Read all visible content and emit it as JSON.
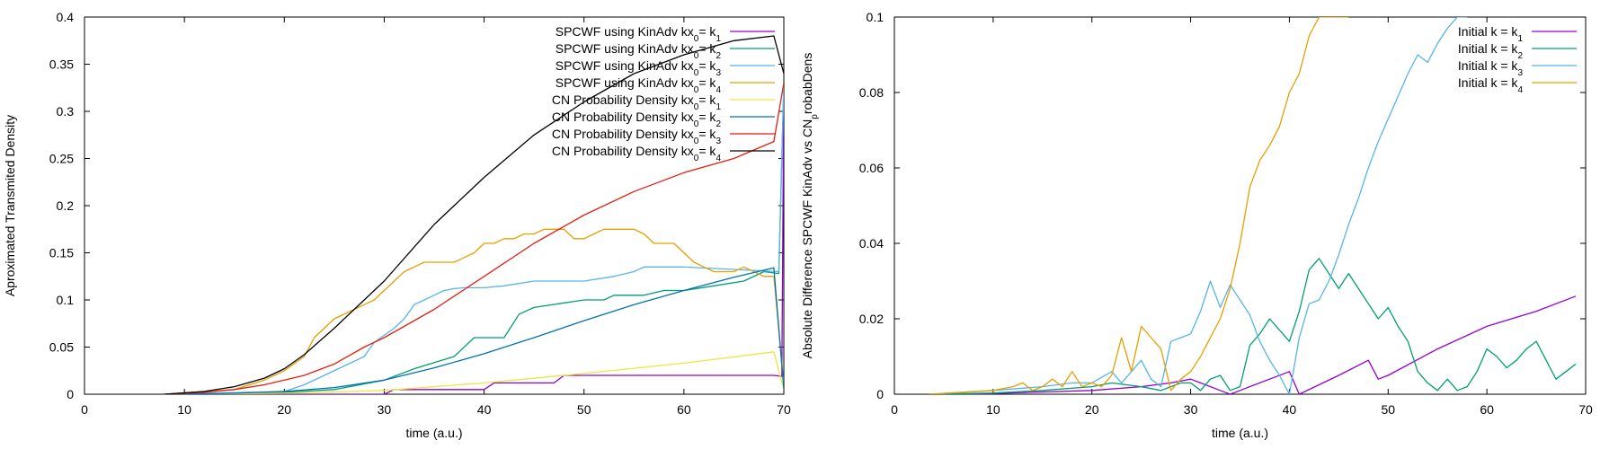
{
  "chart_data": [
    {
      "type": "line",
      "xlabel": "time (a.u.)",
      "ylabel": "Aproximated Transmited Density",
      "xlim": [
        0,
        70
      ],
      "ylim": [
        0,
        0.4
      ],
      "xticks": [
        "0",
        "10",
        "20",
        "30",
        "40",
        "50",
        "60",
        "70"
      ],
      "yticks": [
        "0",
        "0.05",
        "0.1",
        "0.15",
        "0.2",
        "0.25",
        "0.3",
        "0.35",
        "0.4"
      ],
      "grid": false,
      "legend_position": "top-right",
      "series": [
        {
          "name": "SPCWF using KinAdv kx",
          "sub": "0",
          "eq": "= k",
          "k": "1",
          "color": "#9400d3",
          "x": [
            8,
            20,
            30,
            31,
            40,
            41,
            47,
            48,
            69,
            69.8,
            70
          ],
          "y": [
            0,
            0,
            0,
            0.005,
            0.005,
            0.012,
            0.012,
            0.02,
            0.02,
            0.019,
            0.33
          ]
        },
        {
          "name": "SPCWF using KinAdv kx",
          "sub": "0",
          "eq": "= k",
          "k": "2",
          "color": "#009e73",
          "x": [
            8,
            20,
            25,
            30,
            33,
            37,
            39,
            42,
            43.5,
            45,
            50,
            52,
            53,
            56,
            58,
            60,
            63,
            66,
            68,
            69.5,
            70
          ],
          "y": [
            0,
            0.002,
            0.005,
            0.015,
            0.027,
            0.04,
            0.06,
            0.06,
            0.085,
            0.092,
            0.1,
            0.1,
            0.105,
            0.105,
            0.11,
            0.11,
            0.115,
            0.12,
            0.13,
            0.128,
            0.33
          ]
        },
        {
          "name": "SPCWF using KinAdv kx",
          "sub": "0",
          "eq": "= k",
          "k": "3",
          "color": "#56b4e9",
          "x": [
            8,
            20,
            22,
            24,
            26,
            28,
            29,
            31,
            32,
            33,
            34,
            35,
            36,
            37,
            38,
            40,
            42,
            45,
            50,
            53,
            55,
            56,
            60,
            69.5,
            70
          ],
          "y": [
            0,
            0.003,
            0.01,
            0.02,
            0.03,
            0.04,
            0.055,
            0.07,
            0.08,
            0.095,
            0.1,
            0.105,
            0.11,
            0.112,
            0.113,
            0.113,
            0.115,
            0.12,
            0.12,
            0.125,
            0.13,
            0.135,
            0.135,
            0.13,
            0.33
          ]
        },
        {
          "name": "SPCWF using KinAdv kx",
          "sub": "0",
          "eq": "= k",
          "k": "4",
          "color": "#e69f00",
          "x": [
            8,
            15,
            18,
            20,
            22,
            23,
            24,
            25,
            26,
            27,
            28,
            29,
            30,
            31,
            32,
            33,
            34,
            35,
            36,
            37,
            38,
            39,
            40,
            41,
            42,
            43,
            44,
            45,
            46,
            47,
            48,
            49,
            50,
            51,
            52,
            53,
            54,
            55,
            56,
            57,
            58,
            59,
            60,
            61,
            62,
            63,
            64,
            65,
            66,
            67,
            68,
            69,
            70
          ],
          "y": [
            0,
            0.005,
            0.015,
            0.025,
            0.04,
            0.06,
            0.07,
            0.08,
            0.085,
            0.09,
            0.095,
            0.1,
            0.11,
            0.12,
            0.13,
            0.135,
            0.14,
            0.14,
            0.14,
            0.14,
            0.145,
            0.15,
            0.16,
            0.16,
            0.165,
            0.165,
            0.17,
            0.17,
            0.175,
            0.175,
            0.175,
            0.165,
            0.165,
            0.17,
            0.175,
            0.175,
            0.175,
            0.175,
            0.17,
            0.16,
            0.16,
            0.16,
            0.15,
            0.14,
            0.135,
            0.13,
            0.13,
            0.13,
            0.135,
            0.13,
            0.125,
            0.125,
            0.01
          ]
        },
        {
          "name": "CN Probability Density kx",
          "sub": "0",
          "eq": "= k",
          "k": "1",
          "color": "#f0e442",
          "x": [
            8,
            20,
            30,
            40,
            50,
            60,
            69,
            70
          ],
          "y": [
            0,
            0.001,
            0.004,
            0.012,
            0.022,
            0.033,
            0.045,
            0.005
          ]
        },
        {
          "name": "CN Probability Density kx",
          "sub": "0",
          "eq": "= k",
          "k": "2",
          "color": "#0072b2",
          "x": [
            8,
            15,
            20,
            25,
            30,
            35,
            40,
            45,
            50,
            55,
            60,
            65,
            69,
            70
          ],
          "y": [
            0,
            0.001,
            0.003,
            0.007,
            0.015,
            0.028,
            0.043,
            0.06,
            0.078,
            0.095,
            0.11,
            0.124,
            0.134,
            0.005
          ]
        },
        {
          "name": "CN Probability Density kx",
          "sub": "0",
          "eq": "= k",
          "k": "3",
          "color": "#e51e10",
          "x": [
            8,
            12,
            15,
            18,
            20,
            22,
            25,
            28,
            30,
            35,
            40,
            45,
            50,
            55,
            60,
            65,
            69,
            70
          ],
          "y": [
            0,
            0.002,
            0.005,
            0.01,
            0.015,
            0.02,
            0.032,
            0.05,
            0.06,
            0.09,
            0.125,
            0.16,
            0.19,
            0.215,
            0.235,
            0.25,
            0.268,
            0.33
          ]
        },
        {
          "name": "CN Probability Density kx",
          "sub": "0",
          "eq": "= k",
          "k": "4",
          "color": "#000000",
          "x": [
            8,
            12,
            15,
            18,
            20,
            22,
            25,
            28,
            30,
            35,
            40,
            45,
            50,
            55,
            60,
            65,
            69,
            70
          ],
          "y": [
            0,
            0.003,
            0.008,
            0.017,
            0.027,
            0.042,
            0.07,
            0.1,
            0.12,
            0.18,
            0.23,
            0.275,
            0.31,
            0.34,
            0.36,
            0.375,
            0.38,
            0.34
          ]
        }
      ]
    },
    {
      "type": "line",
      "xlabel": "time (a.u.)",
      "ylabel": "Absolute Difference SPCWF KinAdv vs CN",
      "ylabel_sub": "p",
      "ylabel_suffix": "robabDens",
      "xlim": [
        0,
        70
      ],
      "ylim": [
        0,
        0.1
      ],
      "xticks": [
        "0",
        "10",
        "20",
        "30",
        "40",
        "50",
        "60",
        "70"
      ],
      "yticks": [
        "0",
        "0.02",
        "0.04",
        "0.06",
        "0.08",
        "0.1"
      ],
      "grid": false,
      "legend_position": "top-right",
      "series": [
        {
          "name": "Initial k = k",
          "k": "1",
          "color": "#9400d3",
          "x": [
            3.5,
            10,
            20,
            25,
            28,
            30,
            31,
            33,
            34,
            35,
            40,
            41,
            45,
            48,
            49,
            50,
            55,
            60,
            65,
            69
          ],
          "y": [
            0,
            0.0002,
            0.001,
            0.002,
            0.003,
            0.004,
            0.003,
            0.001,
            0,
            0.001,
            0.006,
            0,
            0.005,
            0.009,
            0.004,
            0.005,
            0.012,
            0.018,
            0.022,
            0.026
          ]
        },
        {
          "name": "Initial k = k",
          "k": "2",
          "color": "#009e73",
          "x": [
            3.5,
            10,
            15,
            20,
            22,
            25,
            27,
            28,
            29,
            30,
            31,
            32,
            33,
            34,
            35,
            36,
            37,
            38,
            39,
            40,
            41,
            42,
            43,
            44,
            45,
            46,
            47,
            48,
            49,
            50,
            51,
            52,
            53,
            54,
            55,
            56,
            57,
            58,
            59,
            60,
            61,
            62,
            63,
            64,
            65,
            66,
            67,
            68,
            69
          ],
          "y": [
            0,
            0.0003,
            0.001,
            0.002,
            0.003,
            0.002,
            0.001,
            0.002,
            0.003,
            0.003,
            0.001,
            0.004,
            0.005,
            0.001,
            0.002,
            0.013,
            0.016,
            0.02,
            0.017,
            0.014,
            0.022,
            0.033,
            0.036,
            0.032,
            0.028,
            0.032,
            0.028,
            0.024,
            0.02,
            0.023,
            0.018,
            0.014,
            0.006,
            0.003,
            0.001,
            0.004,
            0.001,
            0.002,
            0.006,
            0.012,
            0.01,
            0.007,
            0.009,
            0.012,
            0.014,
            0.009,
            0.004,
            0.006,
            0.008
          ]
        },
        {
          "name": "Initial k = k",
          "k": "3",
          "color": "#56b4e9",
          "x": [
            3.5,
            10,
            15,
            18,
            20,
            22,
            23,
            24,
            25,
            26,
            27,
            28,
            29,
            30,
            31,
            32,
            33,
            34,
            35,
            36,
            37,
            38,
            39,
            40,
            41,
            42,
            43,
            44,
            45,
            46,
            47,
            48,
            49,
            50,
            51,
            52,
            53,
            54,
            55,
            56,
            57,
            58
          ],
          "y": [
            0,
            0.001,
            0.002,
            0.003,
            0.003,
            0.006,
            0.003,
            0.006,
            0.009,
            0.004,
            0.002,
            0.014,
            0.015,
            0.016,
            0.022,
            0.03,
            0.023,
            0.029,
            0.025,
            0.021,
            0.014,
            0.009,
            0.005,
            0,
            0.015,
            0.024,
            0.025,
            0.03,
            0.037,
            0.045,
            0.052,
            0.06,
            0.067,
            0.073,
            0.079,
            0.085,
            0.09,
            0.088,
            0.093,
            0.097,
            0.1,
            0.102
          ]
        },
        {
          "name": "Initial k = k",
          "k": "4",
          "color": "#e69f00",
          "x": [
            3.5,
            10,
            12,
            13,
            14,
            15,
            16,
            17,
            18,
            19,
            20,
            21,
            22,
            23,
            24,
            25,
            26,
            27,
            28,
            29,
            30,
            31,
            32,
            33,
            34,
            35,
            36,
            37,
            38,
            39,
            40,
            41,
            42,
            43,
            44,
            45,
            46
          ],
          "y": [
            0,
            0.001,
            0.002,
            0.003,
            0.001,
            0.002,
            0.004,
            0.002,
            0.006,
            0.002,
            0.003,
            0.002,
            0.005,
            0.015,
            0.006,
            0.018,
            0.015,
            0.012,
            0.001,
            0.004,
            0.006,
            0.01,
            0.015,
            0.02,
            0.028,
            0.04,
            0.055,
            0.062,
            0.066,
            0.071,
            0.08,
            0.085,
            0.095,
            0.1,
            0.102,
            0.105,
            0.11
          ]
        }
      ]
    }
  ]
}
